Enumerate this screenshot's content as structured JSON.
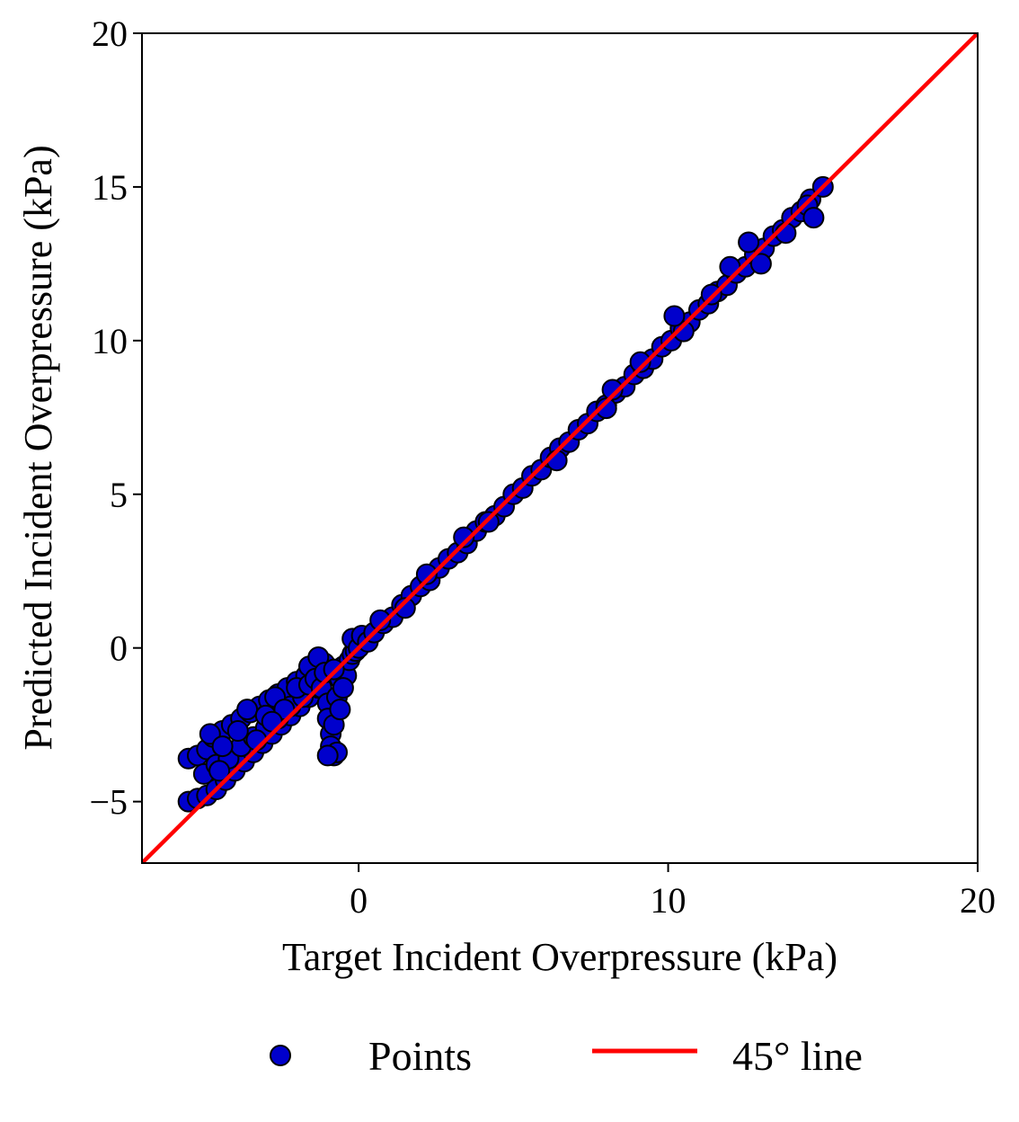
{
  "chart_data": {
    "type": "scatter",
    "xlabel": "Target Incident Overpressure (kPa)",
    "ylabel": "Predicted Incident Overpressure (kPa)",
    "xlim": [
      -7,
      20
    ],
    "ylim": [
      -7,
      20
    ],
    "xticks": [
      0,
      10,
      20
    ],
    "yticks": [
      -5,
      0,
      5,
      10,
      15,
      20
    ],
    "xtick_labels": [
      "0",
      "10",
      "20"
    ],
    "ytick_labels": [
      "−5",
      "0",
      "5",
      "10",
      "15",
      "20"
    ],
    "grid": false,
    "legend_position": "bottom-center-outside",
    "colors": {
      "points_fill": "#0000cc",
      "points_edge": "#000000",
      "line": "#ff0000"
    },
    "series": [
      {
        "name": "Points",
        "kind": "scatter",
        "points": [
          [
            -5.5,
            -5.0
          ],
          [
            -5.2,
            -4.9
          ],
          [
            -4.9,
            -4.8
          ],
          [
            -4.6,
            -4.6
          ],
          [
            -4.3,
            -4.3
          ],
          [
            -4.0,
            -4.0
          ],
          [
            -3.7,
            -3.7
          ],
          [
            -3.4,
            -3.4
          ],
          [
            -3.1,
            -3.1
          ],
          [
            -2.8,
            -2.8
          ],
          [
            -2.5,
            -2.5
          ],
          [
            -2.2,
            -2.2
          ],
          [
            -1.9,
            -1.9
          ],
          [
            -1.6,
            -1.6
          ],
          [
            -1.3,
            -1.3
          ],
          [
            -5.5,
            -3.6
          ],
          [
            -5.2,
            -3.5
          ],
          [
            -4.9,
            -3.3
          ],
          [
            -4.7,
            -2.9
          ],
          [
            -4.4,
            -2.7
          ],
          [
            -4.1,
            -2.5
          ],
          [
            -3.8,
            -2.3
          ],
          [
            -3.5,
            -2.1
          ],
          [
            -3.2,
            -1.9
          ],
          [
            -2.9,
            -1.7
          ],
          [
            -2.6,
            -1.5
          ],
          [
            -2.3,
            -1.3
          ],
          [
            -2.0,
            -1.1
          ],
          [
            -1.7,
            -0.9
          ],
          [
            -1.4,
            -0.7
          ],
          [
            -1.1,
            -0.5
          ],
          [
            -5.0,
            -4.1
          ],
          [
            -4.6,
            -3.8
          ],
          [
            -4.2,
            -3.6
          ],
          [
            -3.8,
            -3.2
          ],
          [
            -3.4,
            -2.9
          ],
          [
            -3.0,
            -2.6
          ],
          [
            -2.6,
            -2.3
          ],
          [
            -2.2,
            -1.9
          ],
          [
            -1.8,
            -1.6
          ],
          [
            -4.8,
            -2.8
          ],
          [
            -4.4,
            -3.2
          ],
          [
            -3.9,
            -2.7
          ],
          [
            -3.6,
            -2.0
          ],
          [
            -3.0,
            -2.2
          ],
          [
            -2.7,
            -1.6
          ],
          [
            -2.4,
            -2.0
          ],
          [
            -2.0,
            -1.3
          ],
          [
            -1.6,
            -1.2
          ],
          [
            -4.5,
            -4.0
          ],
          [
            -3.3,
            -3.0
          ],
          [
            -2.8,
            -2.4
          ],
          [
            -1.6,
            -0.6
          ],
          [
            -1.4,
            -1.0
          ],
          [
            -1.3,
            -0.3
          ],
          [
            -1.2,
            -1.3
          ],
          [
            -1.1,
            -0.8
          ],
          [
            -1.0,
            -1.8
          ],
          [
            -1.0,
            -2.3
          ],
          [
            -0.9,
            -2.8
          ],
          [
            -0.9,
            -3.2
          ],
          [
            -0.8,
            -3.5
          ],
          [
            -0.7,
            -3.4
          ],
          [
            -0.8,
            -2.5
          ],
          [
            -0.7,
            -1.6
          ],
          [
            -0.6,
            -1.0
          ],
          [
            -0.5,
            -0.6
          ],
          [
            -0.4,
            -0.9
          ],
          [
            -0.3,
            -0.4
          ],
          [
            -0.2,
            -0.2
          ],
          [
            -0.1,
            -0.1
          ],
          [
            -1.0,
            -3.5
          ],
          [
            -0.6,
            -2.0
          ],
          [
            -0.5,
            -1.3
          ],
          [
            -0.8,
            -0.7
          ],
          [
            -0.2,
            0.3
          ],
          [
            0.0,
            0.0
          ],
          [
            0.1,
            0.4
          ],
          [
            0.3,
            0.2
          ],
          [
            0.5,
            0.5
          ],
          [
            0.8,
            0.8
          ],
          [
            1.1,
            1.0
          ],
          [
            1.4,
            1.4
          ],
          [
            1.7,
            1.7
          ],
          [
            2.0,
            2.0
          ],
          [
            2.3,
            2.2
          ],
          [
            2.6,
            2.6
          ],
          [
            2.9,
            2.9
          ],
          [
            3.2,
            3.1
          ],
          [
            3.5,
            3.4
          ],
          [
            3.8,
            3.8
          ],
          [
            4.1,
            4.1
          ],
          [
            4.4,
            4.3
          ],
          [
            4.7,
            4.6
          ],
          [
            5.0,
            5.0
          ],
          [
            5.3,
            5.2
          ],
          [
            5.6,
            5.6
          ],
          [
            5.9,
            5.8
          ],
          [
            6.2,
            6.2
          ],
          [
            6.5,
            6.5
          ],
          [
            6.8,
            6.7
          ],
          [
            7.1,
            7.1
          ],
          [
            7.4,
            7.3
          ],
          [
            7.7,
            7.7
          ],
          [
            8.0,
            7.9
          ],
          [
            8.3,
            8.3
          ],
          [
            8.6,
            8.5
          ],
          [
            8.9,
            8.9
          ],
          [
            9.2,
            9.1
          ],
          [
            9.5,
            9.4
          ],
          [
            9.8,
            9.8
          ],
          [
            10.1,
            10.0
          ],
          [
            10.4,
            10.4
          ],
          [
            10.7,
            10.6
          ],
          [
            11.0,
            11.0
          ],
          [
            11.3,
            11.2
          ],
          [
            11.6,
            11.6
          ],
          [
            11.9,
            11.8
          ],
          [
            12.2,
            12.2
          ],
          [
            12.5,
            12.4
          ],
          [
            12.8,
            12.8
          ],
          [
            13.1,
            13.0
          ],
          [
            13.4,
            13.4
          ],
          [
            13.7,
            13.6
          ],
          [
            14.0,
            14.0
          ],
          [
            14.3,
            14.2
          ],
          [
            14.6,
            14.6
          ],
          [
            15.0,
            15.0
          ],
          [
            8.2,
            8.4
          ],
          [
            8.0,
            7.8
          ],
          [
            10.5,
            10.3
          ],
          [
            10.2,
            10.8
          ],
          [
            12.0,
            12.4
          ],
          [
            12.6,
            13.2
          ],
          [
            13.0,
            12.5
          ],
          [
            13.8,
            13.5
          ],
          [
            14.5,
            14.4
          ],
          [
            14.7,
            14.0
          ],
          [
            11.4,
            11.5
          ],
          [
            9.1,
            9.3
          ],
          [
            6.4,
            6.1
          ],
          [
            3.4,
            3.6
          ],
          [
            4.2,
            4.1
          ],
          [
            1.5,
            1.3
          ],
          [
            2.2,
            2.4
          ],
          [
            0.7,
            0.9
          ]
        ]
      },
      {
        "name": "45° line",
        "kind": "line",
        "points": [
          [
            -7,
            -7
          ],
          [
            20,
            20
          ]
        ]
      }
    ]
  }
}
